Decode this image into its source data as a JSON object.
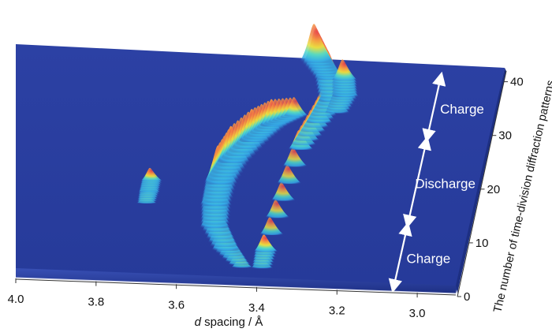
{
  "chart_data": {
    "type": "surface",
    "xlabel_italic": "d",
    "xlabel_rest": " spacing / Å",
    "ylabel": "The number of time-division diffraction patterns",
    "x_ticks": [
      "4.0",
      "3.8",
      "3.6",
      "3.4",
      "3.2",
      "3.0"
    ],
    "x_tick_values": [
      4.0,
      3.8,
      3.6,
      3.4,
      3.2,
      3.0
    ],
    "y_ticks": [
      "0",
      "10",
      "20",
      "30",
      "40"
    ],
    "y_tick_values": [
      0,
      10,
      20,
      30,
      40
    ],
    "xlim": [
      4.0,
      2.9
    ],
    "ylim": [
      0,
      42
    ],
    "colormap": [
      "#2341a0",
      "#33a8e8",
      "#4fd8c8",
      "#e8e040",
      "#f5a040",
      "#e8404c"
    ],
    "surface_color": "#2a3fa2",
    "ridges": [
      {
        "name": "A",
        "points": [
          [
            3.72,
            14,
            0.25
          ],
          [
            3.72,
            16,
            0.35
          ],
          [
            3.72,
            18,
            0.35
          ]
        ]
      },
      {
        "name": "B",
        "points": [
          [
            3.45,
            3,
            0.3
          ],
          [
            3.5,
            6,
            0.7
          ],
          [
            3.54,
            10,
            0.8
          ],
          [
            3.55,
            14,
            0.9
          ],
          [
            3.55,
            18,
            1.0
          ],
          [
            3.53,
            22,
            0.95
          ],
          [
            3.49,
            26,
            0.85
          ],
          [
            3.45,
            29,
            0.7
          ],
          [
            3.4,
            31,
            0.5
          ]
        ]
      },
      {
        "name": "C",
        "points": [
          [
            3.4,
            3,
            0.35
          ],
          [
            3.4,
            6,
            0.45
          ],
          [
            3.37,
            25,
            0.5
          ],
          [
            3.34,
            30,
            0.6
          ],
          [
            3.32,
            34,
            0.7
          ],
          [
            3.34,
            38,
            0.8
          ],
          [
            3.38,
            41,
            1.0
          ]
        ]
      },
      {
        "name": "D",
        "points": [
          [
            3.3,
            32,
            0.5
          ],
          [
            3.29,
            35,
            0.65
          ],
          [
            3.3,
            38,
            0.55
          ]
        ]
      }
    ],
    "annotations": [
      {
        "text": "Charge",
        "y_start": 0,
        "y_end": 12
      },
      {
        "text": "Discharge",
        "y_start": 12,
        "y_end": 28
      },
      {
        "text": "Charge",
        "y_start": 28,
        "y_end": 40
      }
    ]
  }
}
